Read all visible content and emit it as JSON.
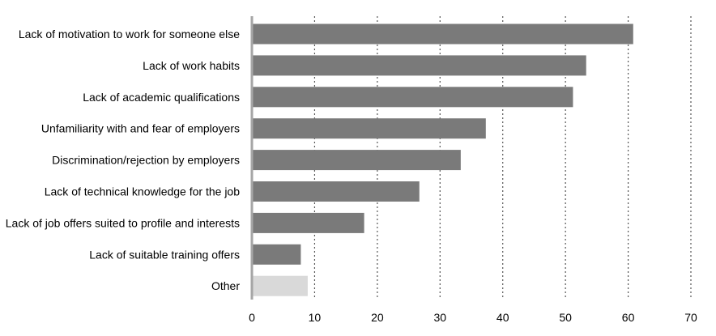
{
  "chart_data": {
    "type": "bar",
    "orientation": "horizontal",
    "title": "",
    "xlabel": "",
    "ylabel": "",
    "categories": [
      "Lack of motivation to work for someone else",
      "Lack of work habits",
      "Lack of academic qualifications",
      "Unfamiliarity with and fear of employers",
      "Discrimination/rejection by employers",
      "Lack of technical knowledge for the job",
      "Lack of job offers suited to profile and interests",
      "Lack of suitable training offers",
      "Other"
    ],
    "values": [
      60.8,
      53.3,
      51.2,
      37.3,
      33.3,
      26.7,
      17.9,
      7.8,
      8.9
    ],
    "xlim": [
      0,
      70
    ],
    "xticks": [
      "0",
      "10",
      "20",
      "30",
      "40",
      "50",
      "60",
      "70"
    ],
    "grid": "vertical dotted",
    "legend": "none",
    "colors": {
      "bar": "#7a7a7a",
      "other_bar": "#d9d9d9",
      "grid": "#555555",
      "axis": "#a6a6a6"
    }
  }
}
